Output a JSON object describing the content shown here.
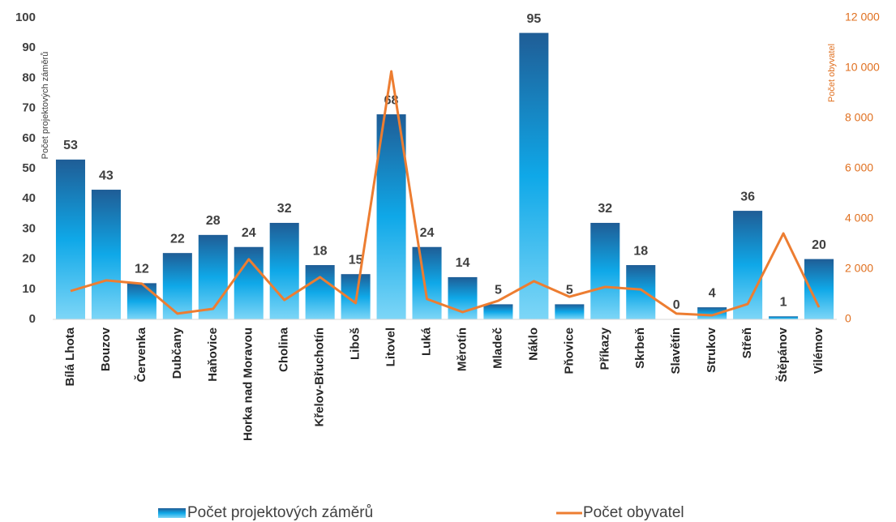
{
  "chart_data": {
    "type": "bar_line",
    "categories": [
      "Bílá Lhota",
      "Bouzov",
      "Červenka",
      "Dubčany",
      "Haňovice",
      "Horka nad Moravou",
      "Cholina",
      "Křelov-Břuchotín",
      "Liboš",
      "Litovel",
      "Luká",
      "Měrotín",
      "Mladeč",
      "Náklo",
      "Pňovice",
      "Příkazy",
      "Skrbeň",
      "Slavětín",
      "Strukov",
      "Střeň",
      "Štěpánov",
      "Vilémov"
    ],
    "series": [
      {
        "name": "Počet projektových záměrů",
        "type": "bar",
        "color": "#0fa8e8",
        "values": [
          53,
          43,
          12,
          22,
          28,
          24,
          32,
          18,
          15,
          68,
          24,
          14,
          5,
          95,
          5,
          32,
          18,
          0,
          4,
          36,
          1,
          20
        ]
      },
      {
        "name": "Počet obyvatel",
        "type": "line",
        "color": "#ed7d31",
        "axis": "y2",
        "values": [
          1130,
          1550,
          1420,
          230,
          420,
          2390,
          770,
          1680,
          650,
          9870,
          810,
          290,
          740,
          1520,
          900,
          1290,
          1190,
          230,
          160,
          610,
          3420,
          480
        ]
      }
    ],
    "ylabel": "Počet projektových záměrů",
    "y2label": "Počet obyvatel",
    "ylim": [
      0,
      100
    ],
    "yticks": [
      0,
      10,
      20,
      30,
      40,
      50,
      60,
      70,
      80,
      90,
      100
    ],
    "y2lim": [
      0,
      12000
    ],
    "y2ticks": [
      0,
      {
        "value": 2000,
        "label": "2 000"
      },
      {
        "value": 4000,
        "label": "4 000"
      },
      {
        "value": 6000,
        "label": "6 000"
      },
      {
        "value": 8000,
        "label": "8 000"
      },
      {
        "value": 10000,
        "label": "10 000"
      },
      {
        "value": 12000,
        "label": "12 000"
      }
    ],
    "legend": "bottom",
    "grid": false
  }
}
